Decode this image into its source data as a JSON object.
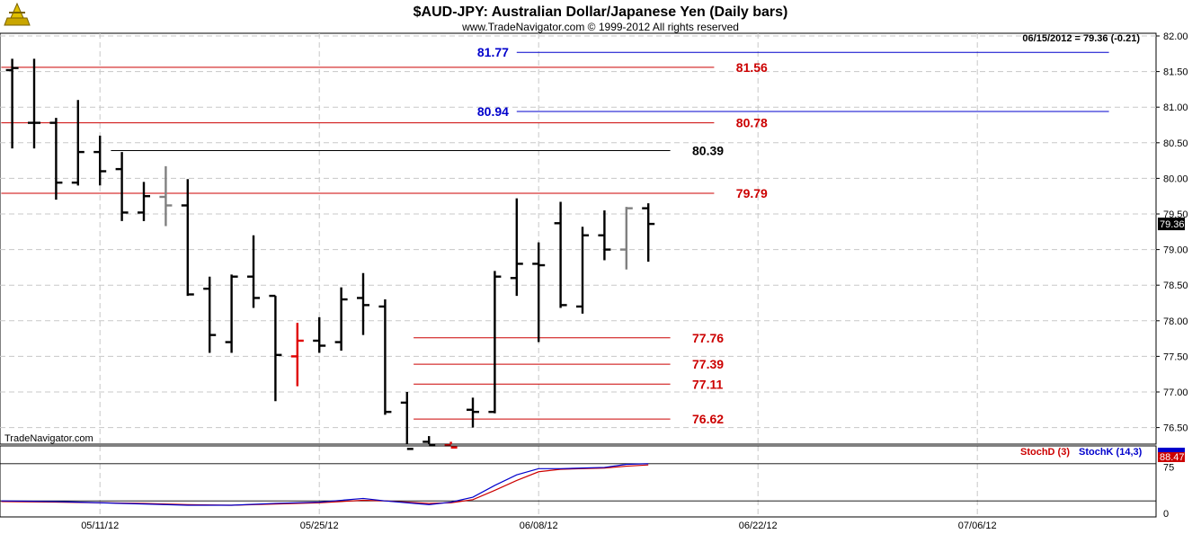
{
  "chart_data": {
    "type": "bar",
    "title": "$AUD-JPY:  Australian Dollar/Japanese Yen  (Daily bars)",
    "subtitle": "www.TradeNavigator.com © 1999-2012 All rights reserved",
    "watermark": "TradeNavigator.com",
    "status_readout": "06/15/2012 = 79.36 (-0.21)",
    "last_price": "79.36",
    "price_axis": {
      "ylim": [
        76.2,
        82.05
      ],
      "ticks": [
        76.5,
        77.0,
        77.5,
        78.0,
        78.5,
        79.0,
        79.5,
        80.0,
        80.5,
        81.0,
        81.5,
        82.0
      ],
      "tick_labels": [
        "76.50",
        "77.00",
        "77.50",
        "78.00",
        "78.50",
        "79.00",
        "79.50",
        "80.00",
        "80.50",
        "81.00",
        "81.50",
        "82.00"
      ],
      "grid": true
    },
    "date_axis": {
      "tick_labels": [
        "05/11/12",
        "05/25/12",
        "06/08/12",
        "06/22/12",
        "07/06/12"
      ],
      "tick_index": [
        3,
        13,
        23,
        33,
        43
      ]
    },
    "colors": {
      "up_bar": "#000000",
      "neutral_bar": "#808080",
      "highlight_bar": "#e00000",
      "red_level": "#cc0000",
      "blue_level": "#0000cc",
      "black_level": "#000000",
      "stoch_d": "#cc0000",
      "stoch_k": "#0000cc"
    },
    "bars": [
      {
        "i": -1,
        "o": 81.52,
        "h": 81.68,
        "l": 80.42,
        "c": 81.55,
        "color": "black"
      },
      {
        "i": 0,
        "o": 80.78,
        "h": 81.68,
        "l": 80.42,
        "c": 80.78,
        "color": "black"
      },
      {
        "i": 1,
        "o": 80.78,
        "h": 80.85,
        "l": 79.7,
        "c": 79.94,
        "color": "black"
      },
      {
        "i": 2,
        "o": 79.94,
        "h": 81.1,
        "l": 79.9,
        "c": 80.37,
        "color": "black"
      },
      {
        "i": 3,
        "o": 80.37,
        "h": 80.6,
        "l": 79.9,
        "c": 80.1,
        "color": "black"
      },
      {
        "i": 4,
        "o": 80.13,
        "h": 80.37,
        "l": 79.4,
        "c": 79.52,
        "color": "black"
      },
      {
        "i": 5,
        "o": 79.52,
        "h": 79.95,
        "l": 79.4,
        "c": 79.75,
        "color": "black"
      },
      {
        "i": 6,
        "o": 79.74,
        "h": 80.17,
        "l": 79.33,
        "c": 79.62,
        "color": "gray"
      },
      {
        "i": 7,
        "o": 79.62,
        "h": 79.99,
        "l": 78.35,
        "c": 78.37,
        "color": "black"
      },
      {
        "i": 8,
        "o": 78.45,
        "h": 78.62,
        "l": 77.55,
        "c": 77.8,
        "color": "black"
      },
      {
        "i": 9,
        "o": 77.7,
        "h": 78.65,
        "l": 77.55,
        "c": 78.62,
        "color": "black"
      },
      {
        "i": 10,
        "o": 78.62,
        "h": 79.2,
        "l": 78.18,
        "c": 78.32,
        "color": "black"
      },
      {
        "i": 11,
        "o": 78.35,
        "h": 78.35,
        "l": 76.87,
        "c": 77.52,
        "color": "black"
      },
      {
        "i": 12,
        "o": 77.5,
        "h": 77.97,
        "l": 77.08,
        "c": 77.72,
        "color": "red"
      },
      {
        "i": 13,
        "o": 77.72,
        "h": 78.05,
        "l": 77.55,
        "c": 77.65,
        "color": "black"
      },
      {
        "i": 14,
        "o": 77.7,
        "h": 78.47,
        "l": 77.58,
        "c": 78.3,
        "color": "black"
      },
      {
        "i": 15,
        "o": 78.32,
        "h": 78.67,
        "l": 77.8,
        "c": 78.22,
        "color": "black"
      },
      {
        "i": 16,
        "o": 78.2,
        "h": 78.3,
        "l": 76.68,
        "c": 76.72,
        "color": "black"
      },
      {
        "i": 17,
        "o": 76.85,
        "h": 77.0,
        "l": 76.2,
        "c": 76.2,
        "color": "black"
      },
      {
        "i": 18,
        "o": 76.3,
        "h": 76.38,
        "l": 76.2,
        "c": 76.25,
        "color": "black"
      },
      {
        "i": 19,
        "o": 76.25,
        "h": 76.3,
        "l": 76.2,
        "c": 76.22,
        "color": "red"
      },
      {
        "i": 20,
        "o": 76.75,
        "h": 76.92,
        "l": 76.5,
        "c": 76.72,
        "color": "black"
      },
      {
        "i": 21,
        "o": 76.72,
        "h": 78.7,
        "l": 76.7,
        "c": 78.62,
        "color": "black"
      },
      {
        "i": 22,
        "o": 78.6,
        "h": 79.72,
        "l": 78.35,
        "c": 78.8,
        "color": "black"
      },
      {
        "i": 23,
        "o": 78.8,
        "h": 79.1,
        "l": 77.7,
        "c": 78.78,
        "color": "black"
      },
      {
        "i": 24,
        "o": 79.37,
        "h": 79.67,
        "l": 78.18,
        "c": 78.22,
        "color": "black"
      },
      {
        "i": 25,
        "o": 78.2,
        "h": 79.32,
        "l": 78.1,
        "c": 79.2,
        "color": "black"
      },
      {
        "i": 26,
        "o": 79.2,
        "h": 79.55,
        "l": 78.85,
        "c": 79.0,
        "color": "black"
      },
      {
        "i": 27,
        "o": 79.0,
        "h": 79.6,
        "l": 78.72,
        "c": 79.58,
        "color": "gray"
      },
      {
        "i": 28,
        "o": 79.58,
        "h": 79.65,
        "l": 78.83,
        "c": 79.36,
        "color": "black"
      }
    ],
    "levels": [
      {
        "value": 81.77,
        "label": "81.77",
        "color": "blue",
        "line_from": 22.0,
        "line_to": 49.0,
        "label_at": 20.2
      },
      {
        "value": 81.56,
        "label": "81.56",
        "color": "red",
        "line_from": -1.5,
        "line_to": 31.0,
        "label_at": 32.0
      },
      {
        "value": 80.94,
        "label": "80.94",
        "color": "blue",
        "line_from": 22.0,
        "line_to": 49.0,
        "label_at": 20.2
      },
      {
        "value": 80.78,
        "label": "80.78",
        "color": "red",
        "line_from": -1.5,
        "line_to": 31.0,
        "label_at": 32.0
      },
      {
        "value": 80.39,
        "label": "80.39",
        "color": "black",
        "line_from": 3.5,
        "line_to": 29.0,
        "label_at": 30.0
      },
      {
        "value": 79.79,
        "label": "79.79",
        "color": "red",
        "line_from": -1.5,
        "line_to": 31.0,
        "label_at": 32.0
      },
      {
        "value": 77.76,
        "label": "77.76",
        "color": "red",
        "line_from": 17.3,
        "line_to": 29.0,
        "label_at": 30.0
      },
      {
        "value": 77.39,
        "label": "77.39",
        "color": "red",
        "line_from": 17.3,
        "line_to": 29.0,
        "label_at": 30.0
      },
      {
        "value": 77.11,
        "label": "77.11",
        "color": "red",
        "line_from": 17.3,
        "line_to": 29.0,
        "label_at": 30.0
      },
      {
        "value": 76.62,
        "label": "76.62",
        "color": "red",
        "line_from": 17.3,
        "line_to": 29.0,
        "label_at": 30.0
      }
    ],
    "stochastic": {
      "label_d": "StochD (3)",
      "label_k": "StochK (14,3)",
      "readout": "88.47",
      "ticks": [
        0,
        75
      ],
      "tick_labels": [
        "0",
        "75"
      ],
      "ylim": [
        0,
        100
      ],
      "x": [
        -1.5,
        1,
        3,
        5,
        7,
        9,
        11,
        13,
        15,
        16,
        18,
        19,
        20,
        21,
        22,
        23,
        24,
        25,
        26,
        27,
        28
      ],
      "k": [
        20,
        19,
        17,
        15,
        13,
        13,
        16,
        18,
        24,
        20,
        14,
        18,
        26,
        45,
        62,
        72,
        72,
        73,
        74,
        79,
        80
      ],
      "d": [
        19,
        18,
        17,
        16,
        14,
        13,
        15,
        17,
        21,
        20,
        16,
        17,
        22,
        37,
        53,
        67,
        71,
        72,
        73,
        76,
        78
      ],
      "ref_levels": [
        80,
        20
      ]
    }
  }
}
